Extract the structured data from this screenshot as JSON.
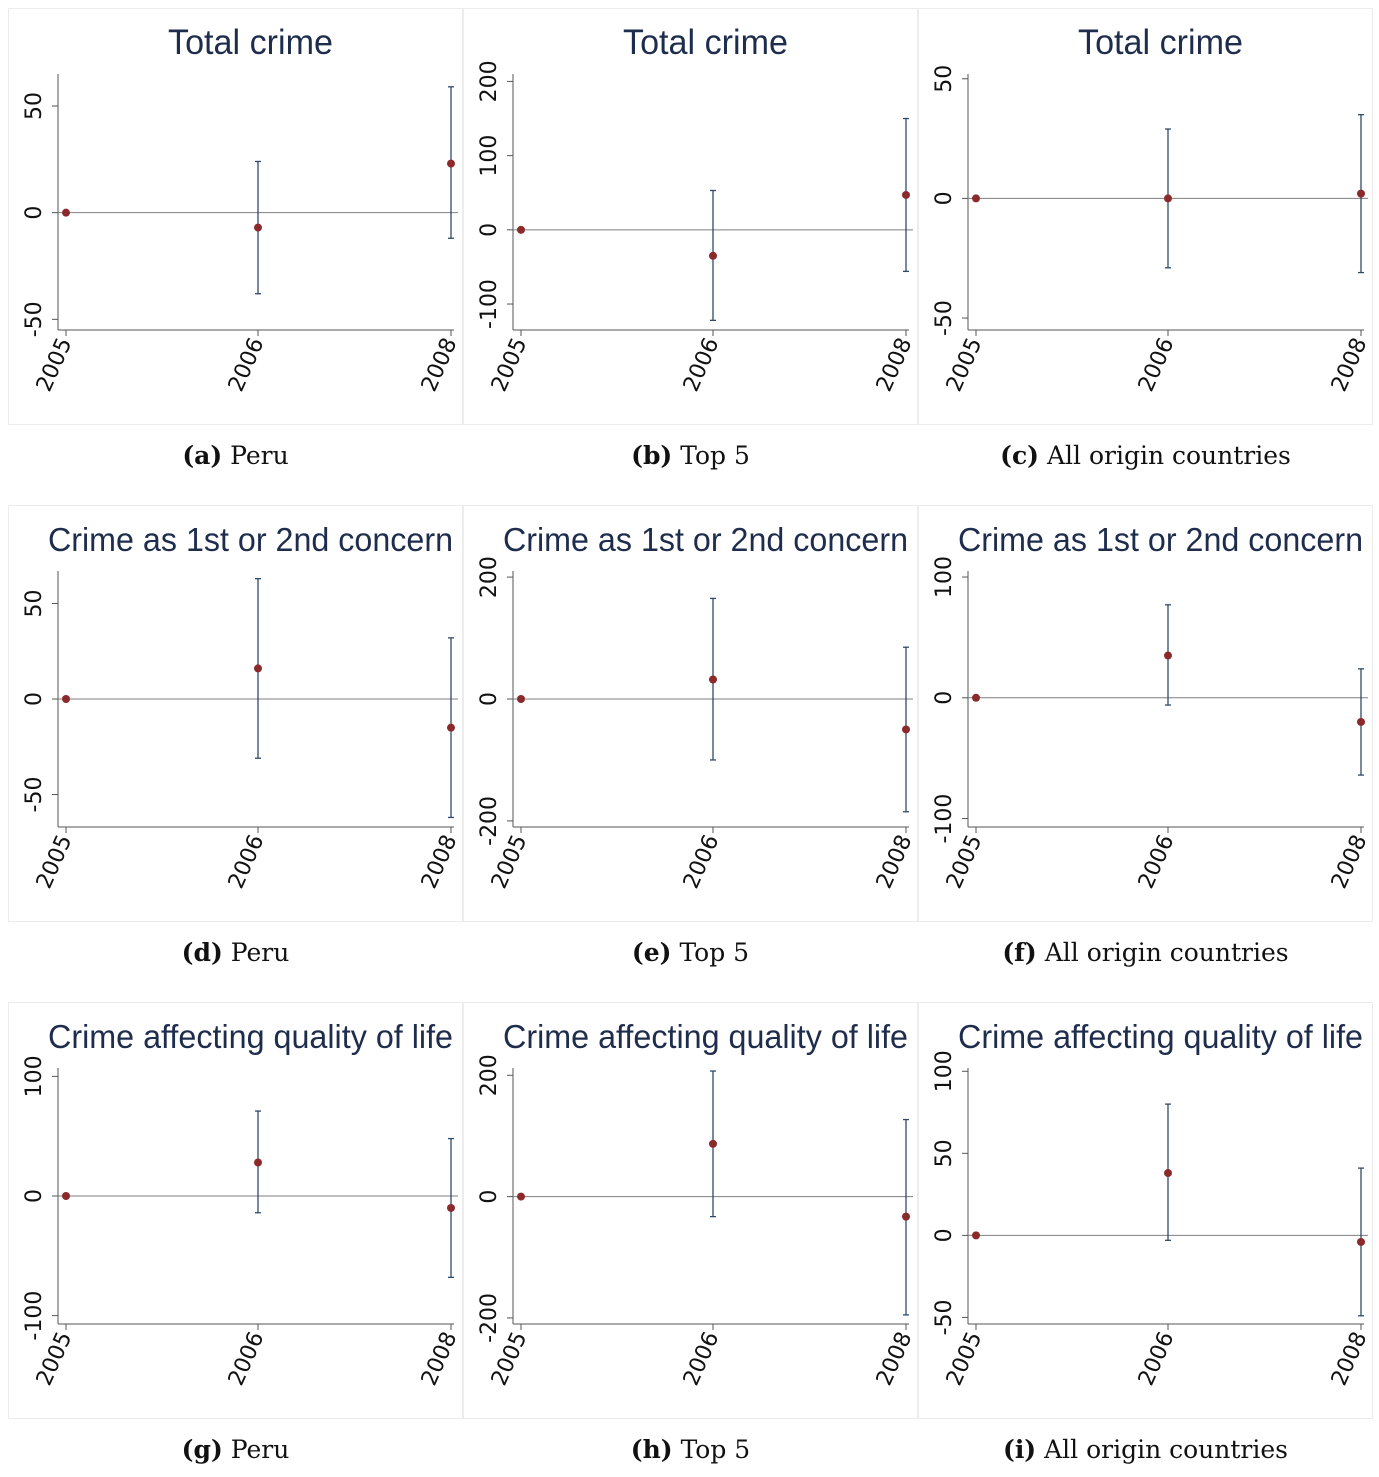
{
  "chart_data": [
    {
      "type": "scatter",
      "title": "Total crime",
      "caption_label": "(a)",
      "caption_text": "Peru",
      "categories": [
        "2005",
        "2006",
        "2008"
      ],
      "y": [
        0,
        -7,
        23
      ],
      "ci_low": [
        0,
        -38,
        -12
      ],
      "ci_high": [
        0,
        24,
        59
      ],
      "ylim": [
        -55,
        65
      ],
      "yticks": [
        -50,
        0,
        50
      ],
      "ytick_labels": [
        "-50",
        "0",
        "50"
      ]
    },
    {
      "type": "scatter",
      "title": "Total crime",
      "caption_label": "(b)",
      "caption_text": "Top 5",
      "categories": [
        "2005",
        "2006",
        "2008"
      ],
      "y": [
        0,
        -35,
        47
      ],
      "ci_low": [
        0,
        -122,
        -56
      ],
      "ci_high": [
        0,
        53,
        150
      ],
      "ylim": [
        -135,
        210
      ],
      "yticks": [
        -100,
        0,
        100,
        200
      ],
      "ytick_labels": [
        "-100",
        "0",
        "100",
        "200"
      ]
    },
    {
      "type": "scatter",
      "title": "Total crime",
      "caption_label": "(c)",
      "caption_text": "All origin countries",
      "categories": [
        "2005",
        "2006",
        "2008"
      ],
      "y": [
        0,
        0,
        2
      ],
      "ci_low": [
        0,
        -29,
        -31
      ],
      "ci_high": [
        0,
        29,
        35
      ],
      "ylim": [
        -55,
        52
      ],
      "yticks": [
        -50,
        0,
        50
      ],
      "ytick_labels": [
        "-50",
        "0",
        "50"
      ]
    },
    {
      "type": "scatter",
      "title": "Crime as 1st or 2nd concern",
      "caption_label": "(d)",
      "caption_text": "Peru",
      "categories": [
        "2005",
        "2006",
        "2008"
      ],
      "y": [
        0,
        16,
        -15
      ],
      "ci_low": [
        0,
        -31,
        -62
      ],
      "ci_high": [
        0,
        63,
        32
      ],
      "ylim": [
        -67,
        67
      ],
      "yticks": [
        -50,
        0,
        50
      ],
      "ytick_labels": [
        "-50",
        "0",
        "50"
      ]
    },
    {
      "type": "scatter",
      "title": "Crime as 1st or 2nd concern",
      "caption_label": "(e)",
      "caption_text": "Top 5",
      "categories": [
        "2005",
        "2006",
        "2008"
      ],
      "y": [
        0,
        32,
        -50
      ],
      "ci_low": [
        0,
        -100,
        -185
      ],
      "ci_high": [
        0,
        165,
        85
      ],
      "ylim": [
        -210,
        210
      ],
      "yticks": [
        -200,
        0,
        200
      ],
      "ytick_labels": [
        "-200",
        "0",
        "200"
      ]
    },
    {
      "type": "scatter",
      "title": "Crime as 1st or 2nd concern",
      "caption_label": "(f)",
      "caption_text": "All origin countries",
      "categories": [
        "2005",
        "2006",
        "2008"
      ],
      "y": [
        0,
        35,
        -20
      ],
      "ci_low": [
        0,
        -6,
        -64
      ],
      "ci_high": [
        0,
        77,
        24
      ],
      "ylim": [
        -107,
        105
      ],
      "yticks": [
        -100,
        0,
        100
      ],
      "ytick_labels": [
        "-100",
        "0",
        "100"
      ]
    },
    {
      "type": "scatter",
      "title": "Crime affecting quality of life",
      "caption_label": "(g)",
      "caption_text": "Peru",
      "categories": [
        "2005",
        "2006",
        "2008"
      ],
      "y": [
        0,
        28,
        -10
      ],
      "ci_low": [
        0,
        -14,
        -68
      ],
      "ci_high": [
        0,
        71,
        48
      ],
      "ylim": [
        -107,
        107
      ],
      "yticks": [
        -100,
        0,
        100
      ],
      "ytick_labels": [
        "-100",
        "0",
        "100"
      ]
    },
    {
      "type": "scatter",
      "title": "Crime affecting quality of life",
      "caption_label": "(h)",
      "caption_text": "Top 5",
      "categories": [
        "2005",
        "2006",
        "2008"
      ],
      "y": [
        0,
        87,
        -33
      ],
      "ci_low": [
        0,
        -33,
        -195
      ],
      "ci_high": [
        0,
        207,
        127
      ],
      "ylim": [
        -210,
        212
      ],
      "yticks": [
        -200,
        0,
        200
      ],
      "ytick_labels": [
        "-200",
        "0",
        "200"
      ]
    },
    {
      "type": "scatter",
      "title": "Crime affecting quality of life",
      "caption_label": "(i)",
      "caption_text": "All origin countries",
      "categories": [
        "2005",
        "2006",
        "2008"
      ],
      "y": [
        0,
        38,
        -4
      ],
      "ci_low": [
        0,
        -3,
        -49
      ],
      "ci_high": [
        0,
        80,
        41
      ],
      "ylim": [
        -54,
        102
      ],
      "yticks": [
        -50,
        0,
        50,
        100
      ],
      "ytick_labels": [
        "-50",
        "0",
        "50",
        "100"
      ]
    }
  ],
  "colors": {
    "point": "#8b2a2a",
    "ci_line": "#2e4a6b",
    "axis": "#555555",
    "zero_line": "#7f7f7f",
    "title": "#1f2d4d",
    "panel_border": "#ececec"
  }
}
